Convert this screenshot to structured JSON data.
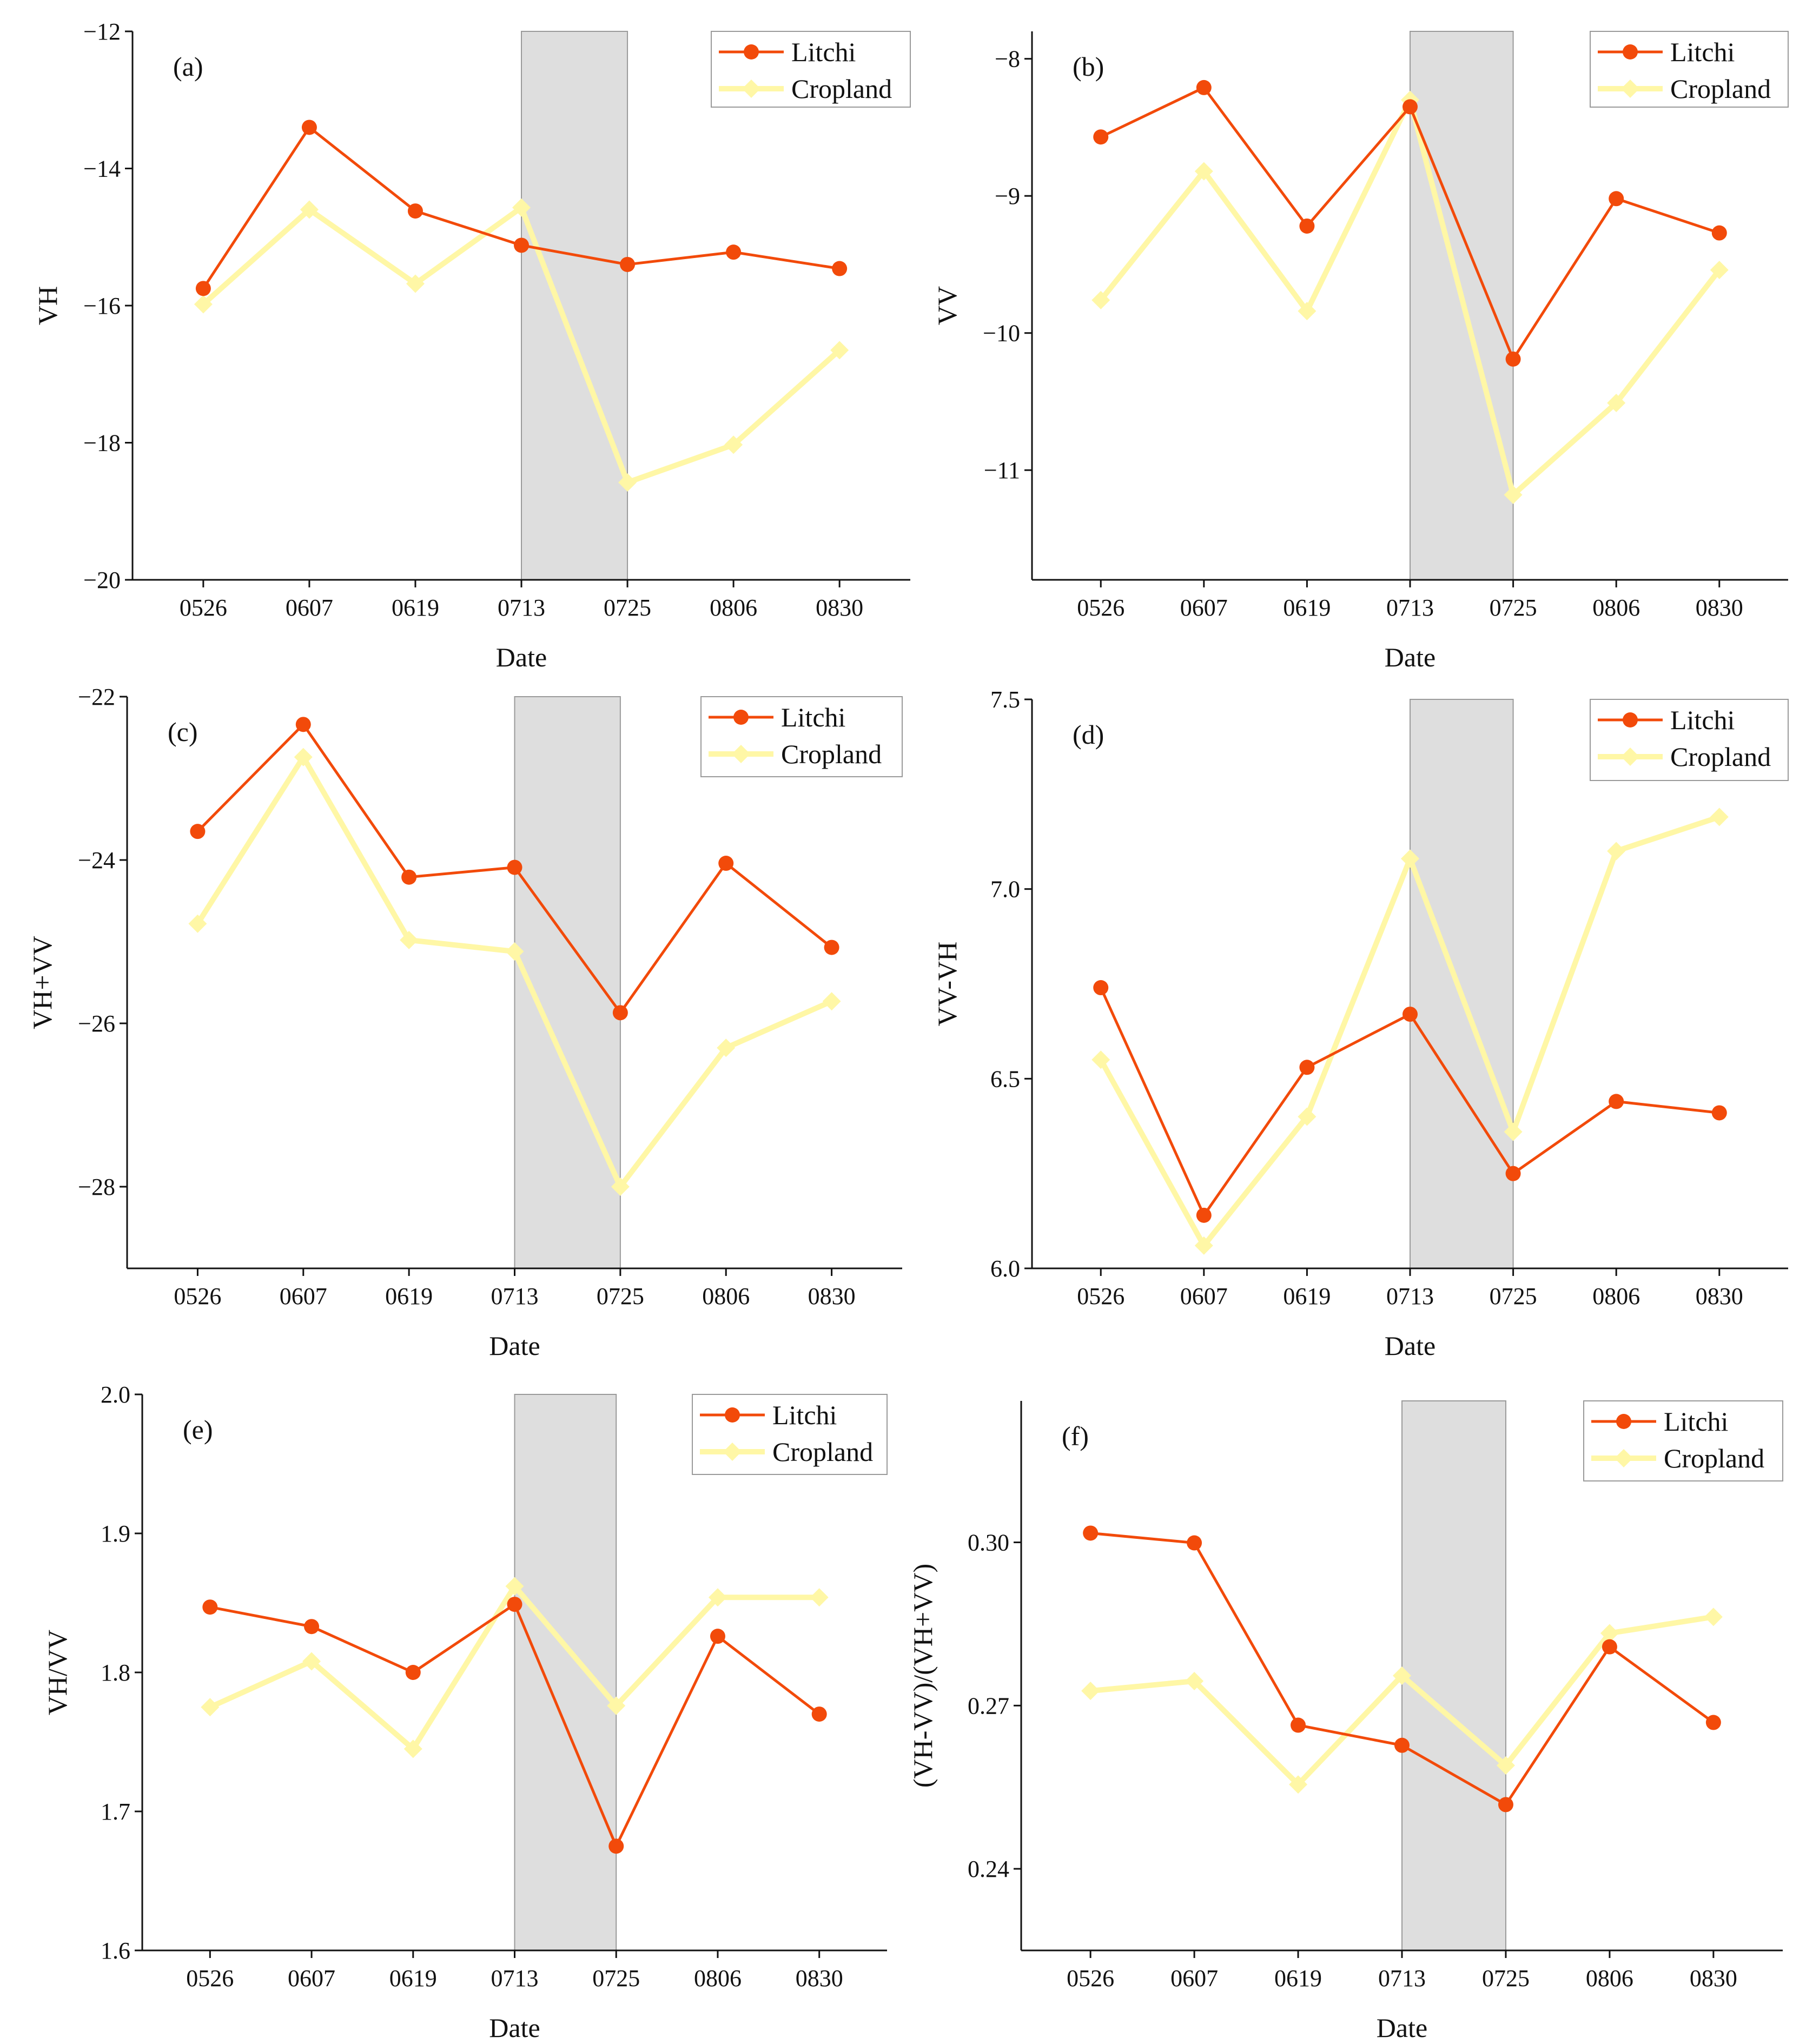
{
  "figure": {
    "colors": {
      "litchi": "#F24A0A",
      "cropland": "#FFF7A6",
      "shade": "#DEDEDE",
      "axis": "#111111"
    }
  },
  "chart_data": [
    {
      "id": "a",
      "type": "line",
      "panel_label": "(a)",
      "xlabel": "Date",
      "ylabel": "VH",
      "categories": [
        "0526",
        "0607",
        "0619",
        "0713",
        "0725",
        "0806",
        "0830"
      ],
      "ylim": [
        -20,
        -12
      ],
      "yticks": [
        -20,
        -18,
        -16,
        -14,
        -12
      ],
      "ytick_labels": [
        "−20",
        "−18",
        "−16",
        "−14",
        "−12"
      ],
      "shaded_range": [
        "0713",
        "0725"
      ],
      "legend": {
        "position": "top-right",
        "entries": [
          "Litchi",
          "Cropland"
        ]
      },
      "series": [
        {
          "name": "Litchi",
          "marker": "circle",
          "values": [
            -15.75,
            -13.4,
            -14.62,
            -15.12,
            -15.4,
            -15.22,
            -15.46
          ]
        },
        {
          "name": "Cropland",
          "marker": "diamond",
          "values": [
            -15.98,
            -14.6,
            -15.68,
            -14.57,
            -18.58,
            -18.03,
            -16.65
          ]
        }
      ]
    },
    {
      "id": "b",
      "type": "line",
      "panel_label": "(b)",
      "xlabel": "Date",
      "ylabel": "VV",
      "categories": [
        "0526",
        "0607",
        "0619",
        "0713",
        "0725",
        "0806",
        "0830"
      ],
      "ylim": [
        -11.8,
        -7.8
      ],
      "yticks": [
        -11,
        -10,
        -9,
        -8
      ],
      "ytick_labels": [
        "−11",
        "−10",
        "−9",
        "−8"
      ],
      "shaded_range": [
        "0713",
        "0725"
      ],
      "legend": {
        "position": "top-right",
        "entries": [
          "Litchi",
          "Cropland"
        ]
      },
      "series": [
        {
          "name": "Litchi",
          "marker": "circle",
          "values": [
            -8.57,
            -8.21,
            -9.22,
            -8.35,
            -10.19,
            -9.02,
            -9.27
          ]
        },
        {
          "name": "Cropland",
          "marker": "diamond",
          "values": [
            -9.76,
            -8.82,
            -9.84,
            -8.3,
            -11.18,
            -10.51,
            -9.54
          ]
        }
      ]
    },
    {
      "id": "c",
      "type": "line",
      "panel_label": "(c)",
      "xlabel": "Date",
      "ylabel": "VH+VV",
      "categories": [
        "0526",
        "0607",
        "0619",
        "0713",
        "0725",
        "0806",
        "0830"
      ],
      "ylim": [
        -29,
        -22
      ],
      "yticks": [
        -28,
        -26,
        -24,
        -22
      ],
      "ytick_labels": [
        "−28",
        "−26",
        "−24",
        "−22"
      ],
      "shaded_range": [
        "0713",
        "0725"
      ],
      "legend": {
        "position": "top-right",
        "entries": [
          "Litchi",
          "Cropland"
        ]
      },
      "series": [
        {
          "name": "Litchi",
          "marker": "circle",
          "values": [
            -23.65,
            -22.34,
            -24.21,
            -24.09,
            -25.87,
            -24.04,
            -25.07
          ]
        },
        {
          "name": "Cropland",
          "marker": "diamond",
          "values": [
            -24.78,
            -22.74,
            -24.98,
            -25.12,
            -28.0,
            -26.3,
            -25.73
          ]
        }
      ]
    },
    {
      "id": "d",
      "type": "line",
      "panel_label": "(d)",
      "xlabel": "Date",
      "ylabel": "VV-VH",
      "categories": [
        "0526",
        "0607",
        "0619",
        "0713",
        "0725",
        "0806",
        "0830"
      ],
      "ylim": [
        6.0,
        7.5
      ],
      "yticks": [
        6.0,
        6.5,
        7.0,
        7.5
      ],
      "ytick_labels": [
        "6.0",
        "6.5",
        "7.0",
        "7.5"
      ],
      "shaded_range": [
        "0713",
        "0725"
      ],
      "legend": {
        "position": "top-right",
        "entries": [
          "Litchi",
          "Cropland"
        ]
      },
      "series": [
        {
          "name": "Litchi",
          "marker": "circle",
          "values": [
            6.74,
            6.14,
            6.53,
            6.67,
            6.25,
            6.44,
            6.41
          ]
        },
        {
          "name": "Cropland",
          "marker": "diamond",
          "values": [
            6.55,
            6.06,
            6.4,
            7.08,
            6.36,
            7.1,
            7.19
          ]
        }
      ]
    },
    {
      "id": "e",
      "type": "line",
      "panel_label": "(e)",
      "xlabel": "Date",
      "ylabel": "VH/VV",
      "categories": [
        "0526",
        "0607",
        "0619",
        "0713",
        "0725",
        "0806",
        "0830"
      ],
      "ylim": [
        1.6,
        2.0
      ],
      "yticks": [
        1.6,
        1.7,
        1.8,
        1.9,
        2.0
      ],
      "ytick_labels": [
        "1.6",
        "1.7",
        "1.8",
        "1.9",
        "2.0"
      ],
      "shaded_range": [
        "0713",
        "0725"
      ],
      "legend": {
        "position": "top-right",
        "entries": [
          "Litchi",
          "Cropland"
        ]
      },
      "series": [
        {
          "name": "Litchi",
          "marker": "circle",
          "values": [
            1.847,
            1.833,
            1.8,
            1.849,
            1.675,
            1.826,
            1.77
          ]
        },
        {
          "name": "Cropland",
          "marker": "diamond",
          "values": [
            1.775,
            1.808,
            1.745,
            1.862,
            1.776,
            1.854,
            1.854
          ]
        }
      ]
    },
    {
      "id": "f",
      "type": "line",
      "panel_label": "(f)",
      "xlabel": "Date",
      "ylabel": "(VH-VV)/(VH+VV)",
      "categories": [
        "0526",
        "0607",
        "0619",
        "0713",
        "0725",
        "0806",
        "0830"
      ],
      "ylim": [
        0.225,
        0.326
      ],
      "yticks": [
        0.24,
        0.27,
        0.3
      ],
      "ytick_labels": [
        "0.24",
        "0.27",
        "0.30"
      ],
      "shaded_range": [
        "0713",
        "0725"
      ],
      "legend": {
        "position": "top-right",
        "entries": [
          "Litchi",
          "Cropland"
        ]
      },
      "series": [
        {
          "name": "Litchi",
          "marker": "circle",
          "values": [
            0.3017,
            0.2999,
            0.2664,
            0.2627,
            0.2518,
            0.2808,
            0.2669
          ]
        },
        {
          "name": "Cropland",
          "marker": "diamond",
          "values": [
            0.2727,
            0.2745,
            0.2555,
            0.2755,
            0.259,
            0.2833,
            0.2863
          ]
        }
      ]
    }
  ]
}
